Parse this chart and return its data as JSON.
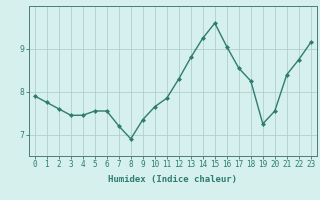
{
  "x": [
    0,
    1,
    2,
    3,
    4,
    5,
    6,
    7,
    8,
    9,
    10,
    11,
    12,
    13,
    14,
    15,
    16,
    17,
    18,
    19,
    20,
    21,
    22,
    23
  ],
  "y": [
    7.9,
    7.75,
    7.6,
    7.45,
    7.45,
    7.55,
    7.55,
    7.2,
    6.9,
    7.35,
    7.65,
    7.85,
    8.3,
    8.8,
    9.25,
    9.6,
    9.05,
    8.55,
    8.25,
    7.25,
    7.55,
    8.4,
    8.75,
    9.15
  ],
  "xlabel": "Humidex (Indice chaleur)",
  "ylabel": "",
  "ylim": [
    6.5,
    10.0
  ],
  "xlim": [
    -0.5,
    23.5
  ],
  "line_color": "#2e7d6e",
  "marker": "D",
  "marker_size": 2.0,
  "bg_color": "#d6f0ee",
  "grid_color": "#b0cfcc",
  "axis_color": "#4d7d78",
  "yticks": [
    7,
    8,
    9
  ],
  "xticks": [
    0,
    1,
    2,
    3,
    4,
    5,
    6,
    7,
    8,
    9,
    10,
    11,
    12,
    13,
    14,
    15,
    16,
    17,
    18,
    19,
    20,
    21,
    22,
    23
  ],
  "tick_fontsize": 5.5,
  "xlabel_fontsize": 6.5
}
